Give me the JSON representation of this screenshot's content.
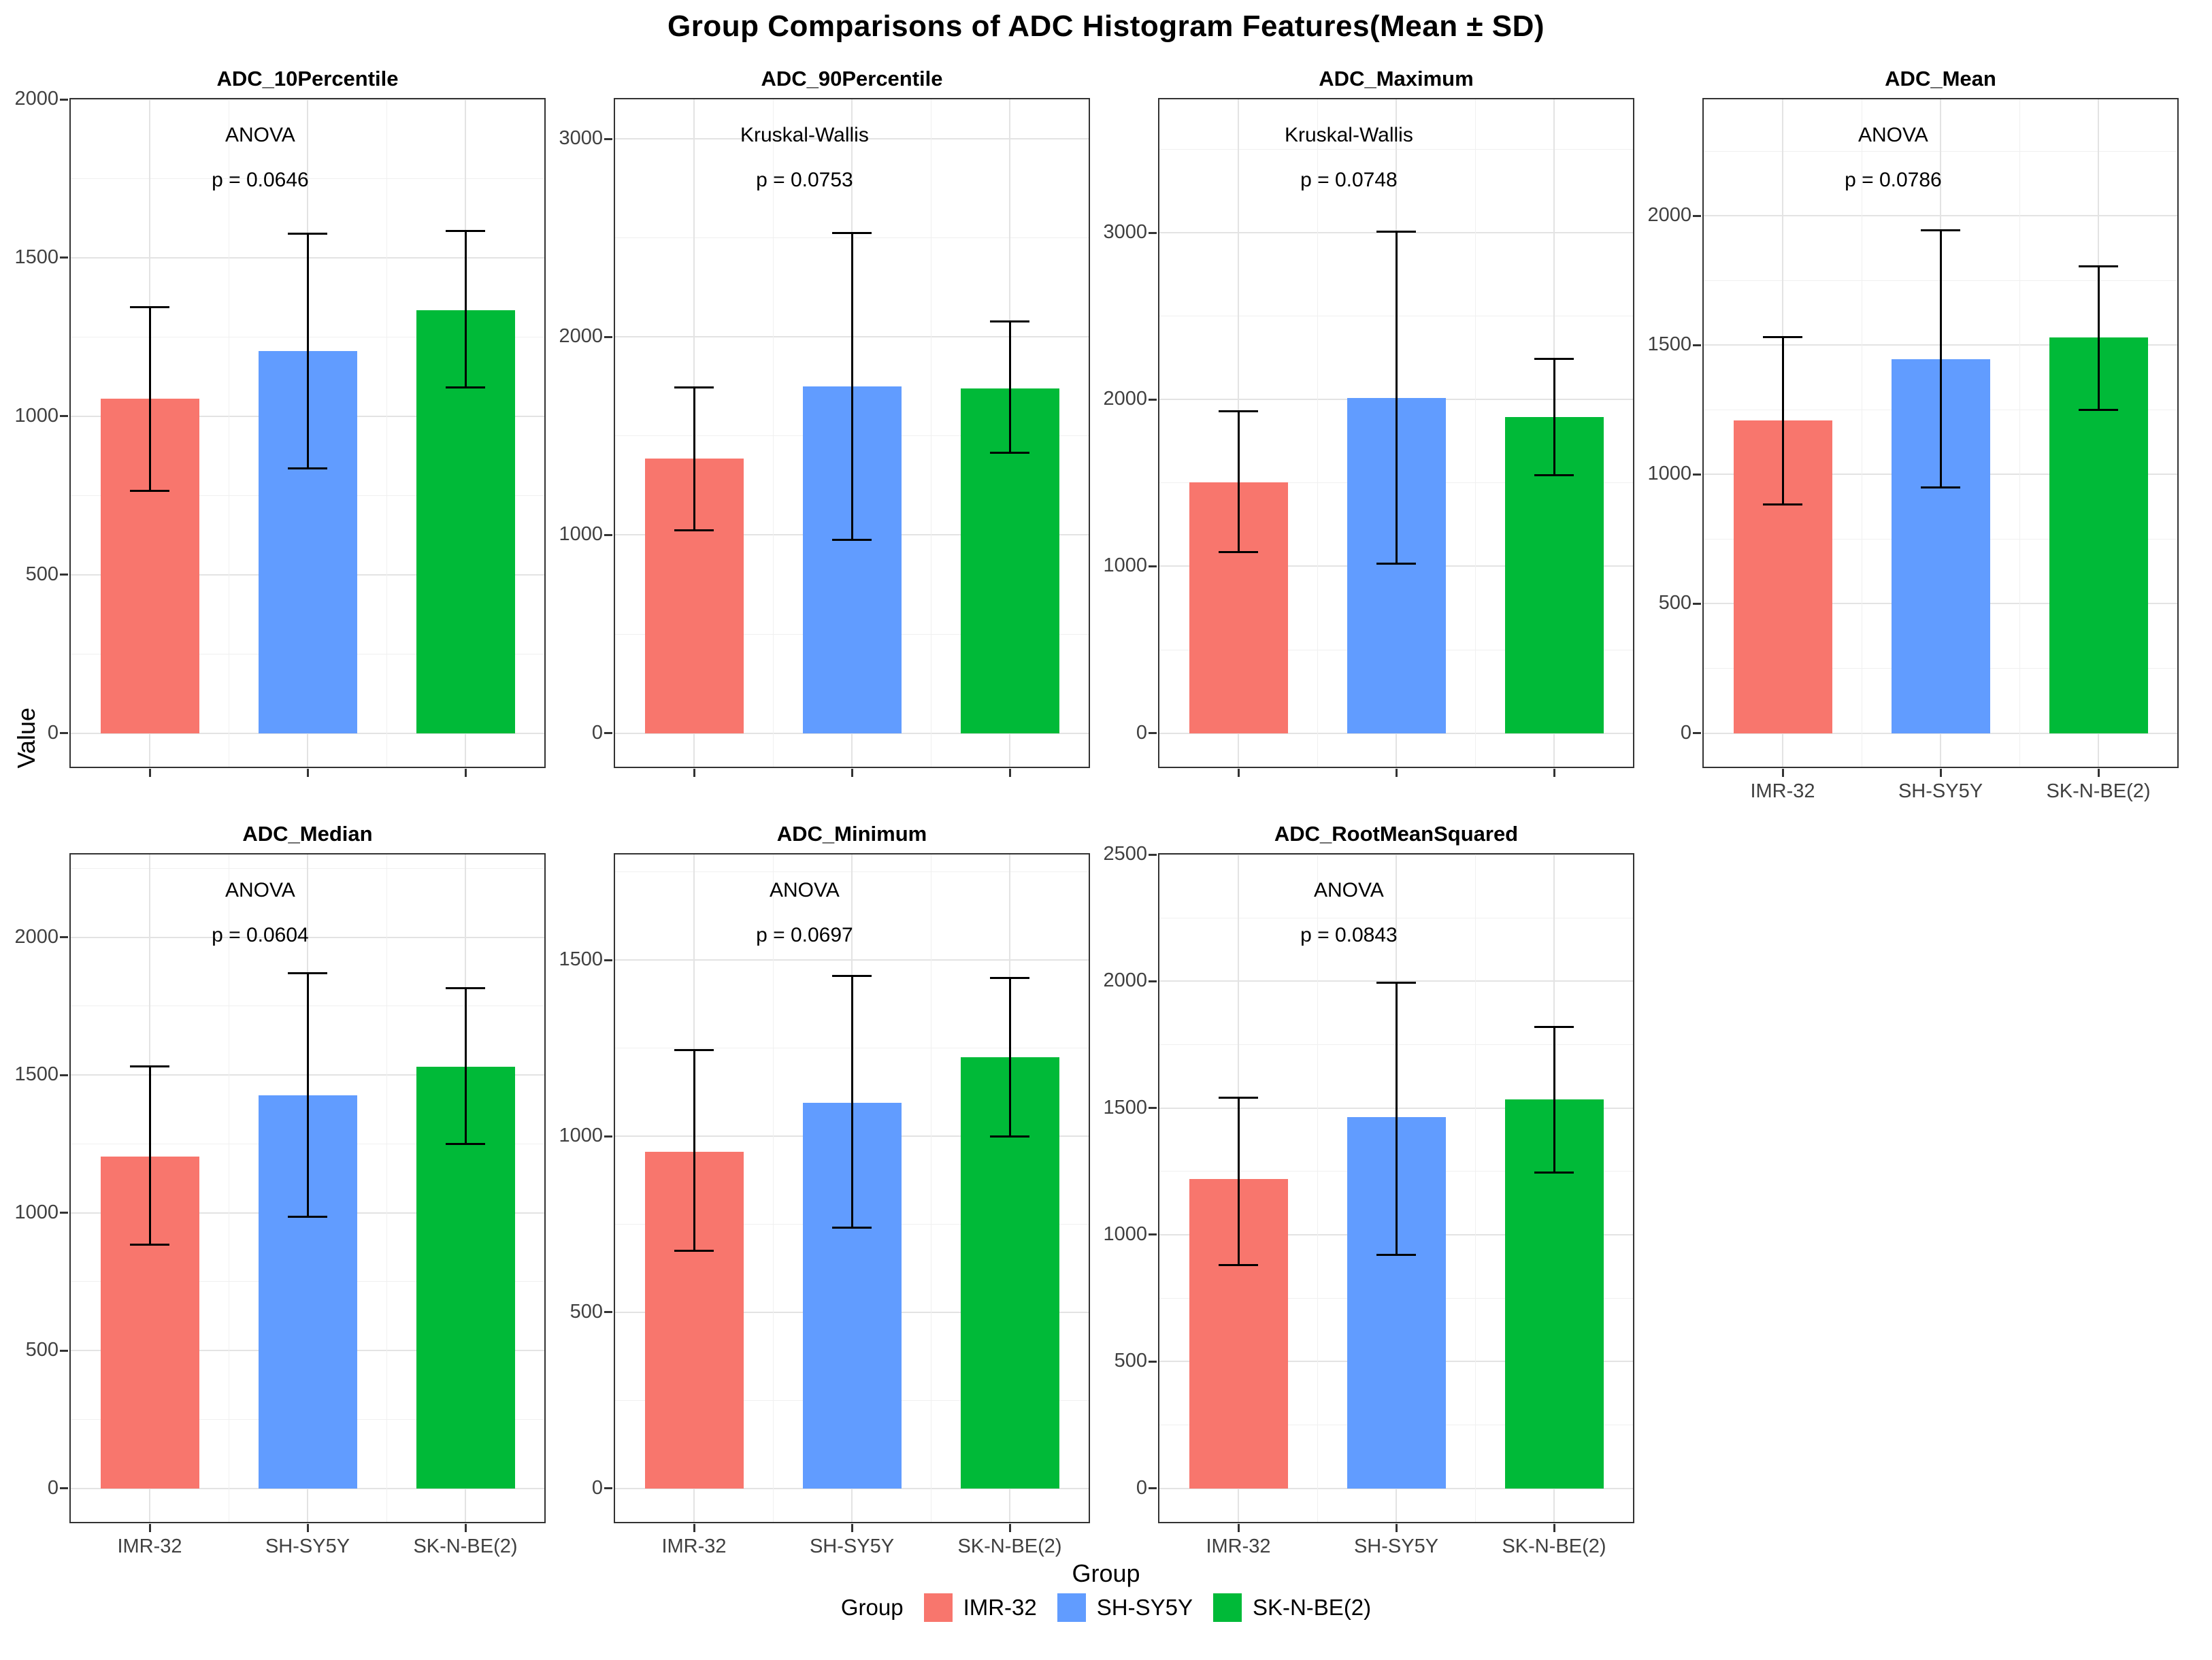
{
  "title": "Group Comparisons of ADC Histogram Features(Mean ± SD)",
  "y_axis_label": "Value",
  "x_axis_label": "Group",
  "groups": [
    "IMR-32",
    "SH-SY5Y",
    "SK-N-BE(2)"
  ],
  "colors": {
    "IMR-32": "#F8766D",
    "SH-SY5Y": "#619CFF",
    "SK-N-BE(2)": "#00BA38"
  },
  "legend": {
    "title": "Group",
    "position": "bottom",
    "items": [
      {
        "label": "IMR-32",
        "color": "#F8766D"
      },
      {
        "label": "SH-SY5Y",
        "color": "#619CFF"
      },
      {
        "label": "SK-N-BE(2)",
        "color": "#00BA38"
      }
    ]
  },
  "layout": {
    "grid_columns": 4,
    "grid_rows": 2,
    "panel_count": 7,
    "grid_on": true
  },
  "chart_data": [
    {
      "type": "bar",
      "title": "ADC_10Percentile",
      "test": "ANOVA",
      "p_label": "p = 0.0646",
      "categories": [
        "IMR-32",
        "SH-SY5Y",
        "SK-N-BE(2)"
      ],
      "values": [
        1055,
        1205,
        1335
      ],
      "error_low": [
        765,
        835,
        1090
      ],
      "error_high": [
        1345,
        1575,
        1585
      ],
      "ylim": [
        0,
        2000
      ],
      "yticks": [
        0,
        500,
        1000,
        1500,
        2000
      ],
      "show_x_labels": false
    },
    {
      "type": "bar",
      "title": "ADC_90Percentile",
      "test": "Kruskal-Wallis",
      "p_label": "p = 0.0753",
      "categories": [
        "IMR-32",
        "SH-SY5Y",
        "SK-N-BE(2)"
      ],
      "values": [
        1385,
        1750,
        1740
      ],
      "error_low": [
        1025,
        975,
        1415
      ],
      "error_high": [
        1745,
        2525,
        2080
      ],
      "ylim": [
        0,
        3200
      ],
      "yticks": [
        0,
        1000,
        2000,
        3000
      ],
      "show_x_labels": false
    },
    {
      "type": "bar",
      "title": "ADC_Maximum",
      "test": "Kruskal-Wallis",
      "p_label": "p = 0.0748",
      "categories": [
        "IMR-32",
        "SH-SY5Y",
        "SK-N-BE(2)"
      ],
      "values": [
        1505,
        2010,
        1895
      ],
      "error_low": [
        1085,
        1015,
        1545
      ],
      "error_high": [
        1930,
        3005,
        2245
      ],
      "ylim": [
        0,
        3800
      ],
      "yticks": [
        0,
        1000,
        2000,
        3000
      ],
      "show_x_labels": false
    },
    {
      "type": "bar",
      "title": "ADC_Mean",
      "test": "ANOVA",
      "p_label": "p = 0.0786",
      "categories": [
        "IMR-32",
        "SH-SY5Y",
        "SK-N-BE(2)"
      ],
      "values": [
        1210,
        1445,
        1530
      ],
      "error_low": [
        885,
        950,
        1250
      ],
      "error_high": [
        1530,
        1945,
        1805
      ],
      "ylim": [
        0,
        2450
      ],
      "yticks": [
        0,
        500,
        1000,
        1500,
        2000
      ],
      "show_x_labels": true
    },
    {
      "type": "bar",
      "title": "ADC_Median",
      "test": "ANOVA",
      "p_label": "p = 0.0604",
      "categories": [
        "IMR-32",
        "SH-SY5Y",
        "SK-N-BE(2)"
      ],
      "values": [
        1205,
        1425,
        1530
      ],
      "error_low": [
        885,
        985,
        1250
      ],
      "error_high": [
        1530,
        1870,
        1815
      ],
      "ylim": [
        0,
        2300
      ],
      "yticks": [
        0,
        500,
        1000,
        1500,
        2000
      ],
      "show_x_labels": true
    },
    {
      "type": "bar",
      "title": "ADC_Minimum",
      "test": "ANOVA",
      "p_label": "p = 0.0697",
      "categories": [
        "IMR-32",
        "SH-SY5Y",
        "SK-N-BE(2)"
      ],
      "values": [
        955,
        1095,
        1225
      ],
      "error_low": [
        675,
        740,
        1000
      ],
      "error_high": [
        1245,
        1455,
        1450
      ],
      "ylim": [
        0,
        1800
      ],
      "yticks": [
        0,
        500,
        1000,
        1500
      ],
      "show_x_labels": true
    },
    {
      "type": "bar",
      "title": "ADC_RootMeanSquared",
      "test": "ANOVA",
      "p_label": "p = 0.0843",
      "categories": [
        "IMR-32",
        "SH-SY5Y",
        "SK-N-BE(2)"
      ],
      "values": [
        1220,
        1465,
        1535
      ],
      "error_low": [
        880,
        920,
        1245
      ],
      "error_high": [
        1540,
        1995,
        1820
      ],
      "ylim": [
        0,
        2500
      ],
      "yticks": [
        0,
        500,
        1000,
        1500,
        2000,
        2500
      ],
      "show_x_labels": true
    }
  ]
}
